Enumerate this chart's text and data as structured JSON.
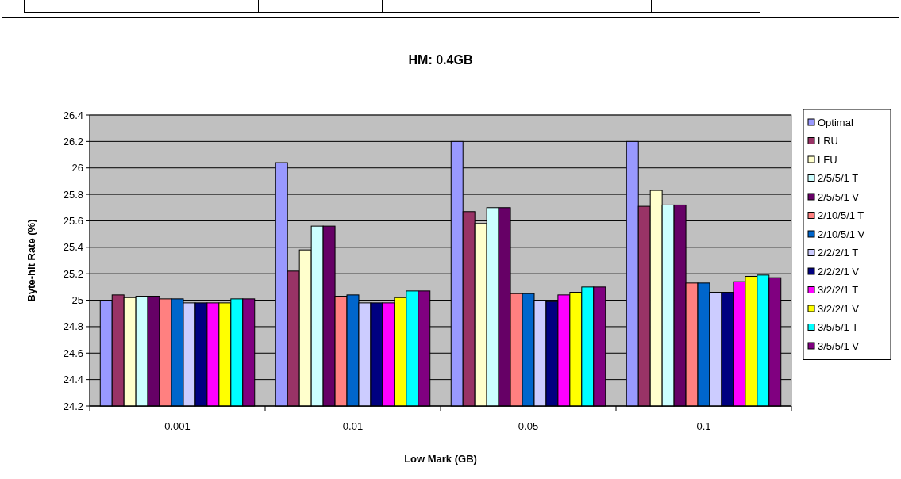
{
  "chart_data": {
    "type": "bar",
    "title": "HM: 0.4GB",
    "xlabel": "Low Mark (GB)",
    "ylabel": "Byte-hit Rate (%)",
    "categories": [
      "0.001",
      "0.01",
      "0.05",
      "0.1"
    ],
    "ylim": [
      24.2,
      26.4
    ],
    "yticks": [
      24.2,
      24.4,
      24.6,
      24.8,
      25,
      25.2,
      25.4,
      25.6,
      25.8,
      26,
      26.2,
      26.4
    ],
    "grid": "y",
    "legend": "right",
    "series": [
      {
        "name": "Optimal",
        "color": "#9999ff",
        "values": [
          25.0,
          26.04,
          26.2,
          26.2
        ]
      },
      {
        "name": "LRU",
        "color": "#993366",
        "values": [
          25.04,
          25.22,
          25.67,
          25.71
        ]
      },
      {
        "name": "LFU",
        "color": "#ffffcc",
        "values": [
          25.02,
          25.38,
          25.58,
          25.83
        ]
      },
      {
        "name": "2/5/5/1 T",
        "color": "#ccffff",
        "values": [
          25.03,
          25.56,
          25.7,
          25.72
        ]
      },
      {
        "name": "2/5/5/1 V",
        "color": "#660066",
        "values": [
          25.03,
          25.56,
          25.7,
          25.72
        ]
      },
      {
        "name": "2/10/5/1 T",
        "color": "#ff8080",
        "values": [
          25.01,
          25.03,
          25.05,
          25.13
        ]
      },
      {
        "name": "2/10/5/1 V",
        "color": "#0066cc",
        "values": [
          25.01,
          25.04,
          25.05,
          25.13
        ]
      },
      {
        "name": "2/2/2/1 T",
        "color": "#ccccff",
        "values": [
          24.98,
          24.98,
          25.0,
          25.06
        ]
      },
      {
        "name": "2/2/2/1 V",
        "color": "#000080",
        "values": [
          24.98,
          24.98,
          24.99,
          25.06
        ]
      },
      {
        "name": "3/2/2/1 T",
        "color": "#ff00ff",
        "values": [
          24.98,
          24.98,
          25.04,
          25.14
        ]
      },
      {
        "name": "3/2/2/1 V",
        "color": "#ffff00",
        "values": [
          24.98,
          25.02,
          25.06,
          25.18
        ]
      },
      {
        "name": "3/5/5/1 T",
        "color": "#00ffff",
        "values": [
          25.01,
          25.07,
          25.1,
          25.19
        ]
      },
      {
        "name": "3/5/5/1 V",
        "color": "#800080",
        "values": [
          25.01,
          25.07,
          25.1,
          25.17
        ]
      }
    ]
  }
}
